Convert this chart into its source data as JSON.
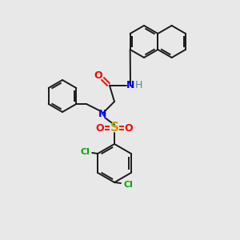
{
  "background_color": "#e8e8e8",
  "bond_color": "#1a1a1a",
  "atom_colors": {
    "O": "#ff0000",
    "N": "#0000ff",
    "H": "#4a9090",
    "S": "#c8a000",
    "Cl": "#00aa00"
  },
  "figsize": [
    3.0,
    3.0
  ],
  "dpi": 100
}
